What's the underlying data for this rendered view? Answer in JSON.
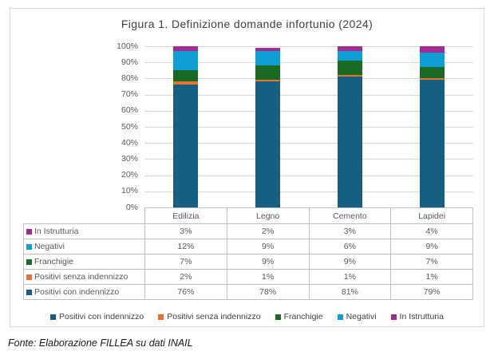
{
  "figure": {
    "source_note": "Fonte: Elaborazione FILLEA su dati INAIL"
  },
  "colors": {
    "frame_border": "#D9D9D9",
    "gridline": "#D9D9D9",
    "table_border": "#BFBFBF",
    "axis_text": "#595959",
    "title_text": "#404040",
    "series_teal": "#156082",
    "series_orange": "#E97132",
    "series_green": "#196B24",
    "series_cyan": "#0F9ED5",
    "series_purple": "#A02B93"
  },
  "chart_data": {
    "type": "bar",
    "stacked": true,
    "title": "Figura 1. Definizione domande infortunio (2024)",
    "categories": [
      "Edilizia",
      "Legno",
      "Cemento",
      "Lapidei"
    ],
    "series": [
      {
        "name": "Positivi con indennizzo",
        "color": "#156082",
        "values": [
          76,
          78,
          81,
          79
        ]
      },
      {
        "name": "Positivi senza indennizzo",
        "color": "#E97132",
        "values": [
          2,
          1,
          1,
          1
        ]
      },
      {
        "name": "Franchigie",
        "color": "#196B24",
        "values": [
          7,
          9,
          9,
          7
        ]
      },
      {
        "name": "Negativi",
        "color": "#0F9ED5",
        "values": [
          12,
          9,
          6,
          9
        ]
      },
      {
        "name": "In Istrutturia",
        "color": "#A02B93",
        "values": [
          3,
          2,
          3,
          4
        ]
      }
    ],
    "value_suffix": "%",
    "y_ticks": [
      "0%",
      "10%",
      "20%",
      "30%",
      "40%",
      "50%",
      "60%",
      "70%",
      "80%",
      "90%",
      "100%"
    ],
    "ylim": [
      0,
      100
    ],
    "grid": true,
    "legend_position": "bottom",
    "data_table_shown": true,
    "data_table_row_order_top_to_bottom": [
      "In Istrutturia",
      "Negativi",
      "Franchigie",
      "Positivi senza indennizzo",
      "Positivi con indennizzo"
    ]
  }
}
